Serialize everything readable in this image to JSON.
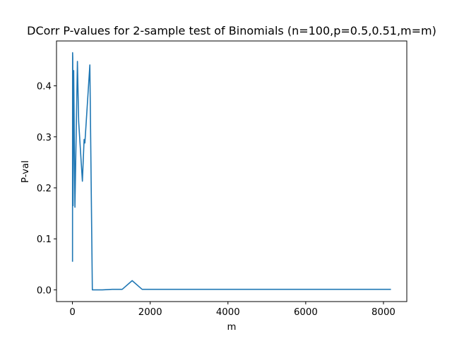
{
  "chart_data": {
    "type": "line",
    "title": "DCorr P-values for 2-sample test of Binomials (n=100,p=0.5,0.51,m=m)",
    "xlabel": "m",
    "ylabel": "P-val",
    "xlim": [
      -410,
      8600
    ],
    "ylim": [
      -0.023,
      0.488
    ],
    "xticks": [
      0,
      2000,
      4000,
      6000,
      8000
    ],
    "xtick_labels": [
      "0",
      "2000",
      "4000",
      "6000",
      "8000"
    ],
    "yticks": [
      0.0,
      0.1,
      0.2,
      0.3,
      0.4
    ],
    "ytick_labels": [
      "0.0",
      "0.1",
      "0.2",
      "0.3",
      "0.4"
    ],
    "grid": false,
    "legend": "none",
    "line_color": "#1f77b4",
    "series": [
      {
        "x": [
          2,
          4,
          8,
          16,
          32,
          64,
          128,
          160,
          256,
          300,
          320,
          448,
          512,
          640,
          768,
          1024,
          1280,
          1536,
          1792,
          2048,
          3000,
          4096,
          6000,
          8192
        ],
        "values": [
          0.055,
          0.465,
          0.455,
          0.165,
          0.43,
          0.162,
          0.448,
          0.33,
          0.213,
          0.295,
          0.288,
          0.441,
          0.0,
          0.0,
          0.0,
          0.001,
          0.001,
          0.018,
          0.001,
          0.001,
          0.001,
          0.001,
          0.001,
          0.001
        ]
      }
    ]
  }
}
